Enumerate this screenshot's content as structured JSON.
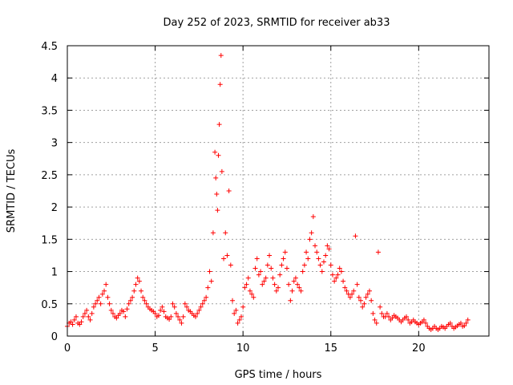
{
  "chart_data": {
    "type": "scatter",
    "title": "Day 252 of 2023, SRMTID for receiver ab33",
    "xlabel": "GPS time / hours",
    "ylabel": "SRMTID / TECUs",
    "xlim": [
      0,
      24
    ],
    "ylim": [
      0,
      4.5
    ],
    "xticks": [
      0,
      5,
      10,
      15,
      20
    ],
    "yticks": [
      0,
      0.5,
      1,
      1.5,
      2,
      2.5,
      3,
      3.5,
      4,
      4.5
    ],
    "xtick_labels": [
      "0",
      "5",
      "10",
      "15",
      "20"
    ],
    "ytick_labels": [
      "0",
      "0.5",
      "1",
      "1.5",
      "2",
      "2.5",
      "3",
      "3.5",
      "4",
      "4.5"
    ],
    "grid": true,
    "marker": "plus",
    "color": "#ff0000",
    "series": [
      {
        "name": "SRMTID",
        "x": [
          0.0,
          0.1,
          0.2,
          0.3,
          0.4,
          0.5,
          0.6,
          0.7,
          0.8,
          0.9,
          1.0,
          1.1,
          1.2,
          1.3,
          1.4,
          1.5,
          1.6,
          1.7,
          1.8,
          1.9,
          2.0,
          2.1,
          2.2,
          2.3,
          2.4,
          2.5,
          2.6,
          2.7,
          2.8,
          2.9,
          3.0,
          3.1,
          3.2,
          3.3,
          3.4,
          3.5,
          3.6,
          3.7,
          3.8,
          3.9,
          4.0,
          4.1,
          4.2,
          4.3,
          4.4,
          4.5,
          4.6,
          4.7,
          4.8,
          4.9,
          5.0,
          5.1,
          5.2,
          5.3,
          5.4,
          5.5,
          5.6,
          5.7,
          5.8,
          5.9,
          6.0,
          6.1,
          6.2,
          6.3,
          6.4,
          6.5,
          6.6,
          6.7,
          6.8,
          6.9,
          7.0,
          7.1,
          7.2,
          7.3,
          7.4,
          7.5,
          7.6,
          7.7,
          7.8,
          7.9,
          8.0,
          8.1,
          8.2,
          8.3,
          8.4,
          8.45,
          8.5,
          8.55,
          8.6,
          8.65,
          8.7,
          8.75,
          8.8,
          8.9,
          9.0,
          9.1,
          9.2,
          9.3,
          9.4,
          9.5,
          9.6,
          9.7,
          9.8,
          9.9,
          10.0,
          10.1,
          10.2,
          10.3,
          10.4,
          10.5,
          10.6,
          10.7,
          10.8,
          10.9,
          11.0,
          11.1,
          11.2,
          11.3,
          11.4,
          11.5,
          11.6,
          11.7,
          11.8,
          11.9,
          12.0,
          12.1,
          12.2,
          12.3,
          12.4,
          12.5,
          12.6,
          12.7,
          12.8,
          12.9,
          13.0,
          13.1,
          13.2,
          13.3,
          13.4,
          13.5,
          13.6,
          13.7,
          13.8,
          13.9,
          14.0,
          14.1,
          14.2,
          14.3,
          14.4,
          14.5,
          14.6,
          14.7,
          14.8,
          14.9,
          15.0,
          15.1,
          15.2,
          15.3,
          15.4,
          15.5,
          15.6,
          15.7,
          15.8,
          15.9,
          16.0,
          16.1,
          16.2,
          16.3,
          16.4,
          16.5,
          16.6,
          16.7,
          16.8,
          16.9,
          17.0,
          17.1,
          17.2,
          17.3,
          17.4,
          17.5,
          17.6,
          17.7,
          17.8,
          17.9,
          18.0,
          18.1,
          18.2,
          18.3,
          18.4,
          18.5,
          18.6,
          18.7,
          18.8,
          18.9,
          19.0,
          19.1,
          19.2,
          19.3,
          19.4,
          19.5,
          19.6,
          19.7,
          19.8,
          19.9,
          20.0,
          20.1,
          20.2,
          20.3,
          20.4,
          20.5,
          20.6,
          20.7,
          20.8,
          20.9,
          21.0,
          21.1,
          21.2,
          21.3,
          21.4,
          21.5,
          21.6,
          21.7,
          21.8,
          21.9,
          22.0,
          22.1,
          22.2,
          22.3,
          22.4,
          22.5,
          22.6,
          22.7,
          22.8
        ],
        "y": [
          0.15,
          0.2,
          0.22,
          0.18,
          0.25,
          0.3,
          0.2,
          0.18,
          0.22,
          0.3,
          0.35,
          0.4,
          0.3,
          0.25,
          0.35,
          0.45,
          0.5,
          0.55,
          0.6,
          0.5,
          0.65,
          0.7,
          0.8,
          0.6,
          0.5,
          0.4,
          0.35,
          0.3,
          0.28,
          0.32,
          0.35,
          0.4,
          0.38,
          0.3,
          0.42,
          0.5,
          0.55,
          0.6,
          0.7,
          0.8,
          0.9,
          0.85,
          0.7,
          0.6,
          0.55,
          0.5,
          0.45,
          0.42,
          0.4,
          0.38,
          0.35,
          0.3,
          0.32,
          0.4,
          0.45,
          0.38,
          0.3,
          0.28,
          0.26,
          0.3,
          0.5,
          0.45,
          0.35,
          0.3,
          0.25,
          0.2,
          0.3,
          0.5,
          0.45,
          0.4,
          0.38,
          0.35,
          0.32,
          0.3,
          0.35,
          0.4,
          0.45,
          0.5,
          0.55,
          0.6,
          0.75,
          1.0,
          0.85,
          1.6,
          2.85,
          2.45,
          2.2,
          1.95,
          2.8,
          3.28,
          3.9,
          4.35,
          2.55,
          1.2,
          1.6,
          1.25,
          2.25,
          1.1,
          0.55,
          0.35,
          0.4,
          0.2,
          0.25,
          0.3,
          0.45,
          0.75,
          0.8,
          0.9,
          0.7,
          0.65,
          0.6,
          1.05,
          1.2,
          0.95,
          1.0,
          0.8,
          0.85,
          0.9,
          1.1,
          1.25,
          1.05,
          0.9,
          0.8,
          0.7,
          0.75,
          0.95,
          1.1,
          1.2,
          1.3,
          1.05,
          0.8,
          0.55,
          0.7,
          0.85,
          0.9,
          0.8,
          0.75,
          0.7,
          1.0,
          1.1,
          1.3,
          1.2,
          1.5,
          1.6,
          1.85,
          1.4,
          1.3,
          1.2,
          1.1,
          1.0,
          1.15,
          1.25,
          1.4,
          1.35,
          1.1,
          0.95,
          0.85,
          0.9,
          0.95,
          1.05,
          1.0,
          0.85,
          0.75,
          0.7,
          0.65,
          0.6,
          0.65,
          0.7,
          1.55,
          0.8,
          0.6,
          0.55,
          0.45,
          0.5,
          0.6,
          0.65,
          0.7,
          0.55,
          0.35,
          0.25,
          0.2,
          1.3,
          0.45,
          0.35,
          0.3,
          0.3,
          0.35,
          0.3,
          0.25,
          0.28,
          0.32,
          0.3,
          0.28,
          0.25,
          0.22,
          0.25,
          0.28,
          0.3,
          0.25,
          0.2,
          0.22,
          0.25,
          0.22,
          0.2,
          0.18,
          0.2,
          0.22,
          0.25,
          0.2,
          0.15,
          0.12,
          0.1,
          0.12,
          0.15,
          0.12,
          0.1,
          0.12,
          0.15,
          0.14,
          0.12,
          0.15,
          0.18,
          0.2,
          0.15,
          0.12,
          0.14,
          0.16,
          0.18,
          0.2,
          0.15,
          0.16,
          0.2,
          0.25
        ]
      }
    ]
  }
}
